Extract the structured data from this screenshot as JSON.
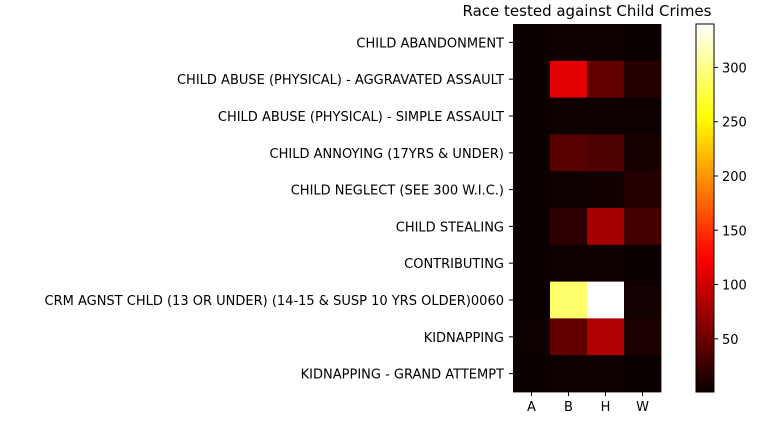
{
  "chart_data": {
    "type": "heatmap",
    "title": "Race tested against Child Crimes",
    "x_categories": [
      "A",
      "B",
      "H",
      "W"
    ],
    "y_categories": [
      "CHILD ABANDONMENT",
      "CHILD ABUSE (PHYSICAL) - AGGRAVATED ASSAULT",
      "CHILD ABUSE (PHYSICAL) - SIMPLE ASSAULT",
      "CHILD ANNOYING (17YRS & UNDER)",
      "CHILD NEGLECT (SEE 300 W.I.C.)",
      "CHILD STEALING",
      "CONTRIBUTING",
      "CRM AGNST CHLD (13 OR UNDER) (14-15 & SUSP 10 YRS OLDER)0060",
      "KIDNAPPING",
      "KIDNAPPING - GRAND ATTEMPT"
    ],
    "values": [
      [
        1,
        2,
        2,
        1
      ],
      [
        1,
        110,
        45,
        15
      ],
      [
        1,
        3,
        3,
        2
      ],
      [
        1,
        40,
        35,
        8
      ],
      [
        1,
        3,
        4,
        15
      ],
      [
        1,
        18,
        80,
        30
      ],
      [
        1,
        2,
        2,
        1
      ],
      [
        1,
        290,
        340,
        5
      ],
      [
        2,
        45,
        85,
        10
      ],
      [
        1,
        2,
        2,
        1
      ]
    ],
    "colormap": "hot",
    "colorbar": {
      "min": 1,
      "max": 340,
      "ticks": [
        50,
        100,
        150,
        200,
        250,
        300
      ]
    }
  }
}
